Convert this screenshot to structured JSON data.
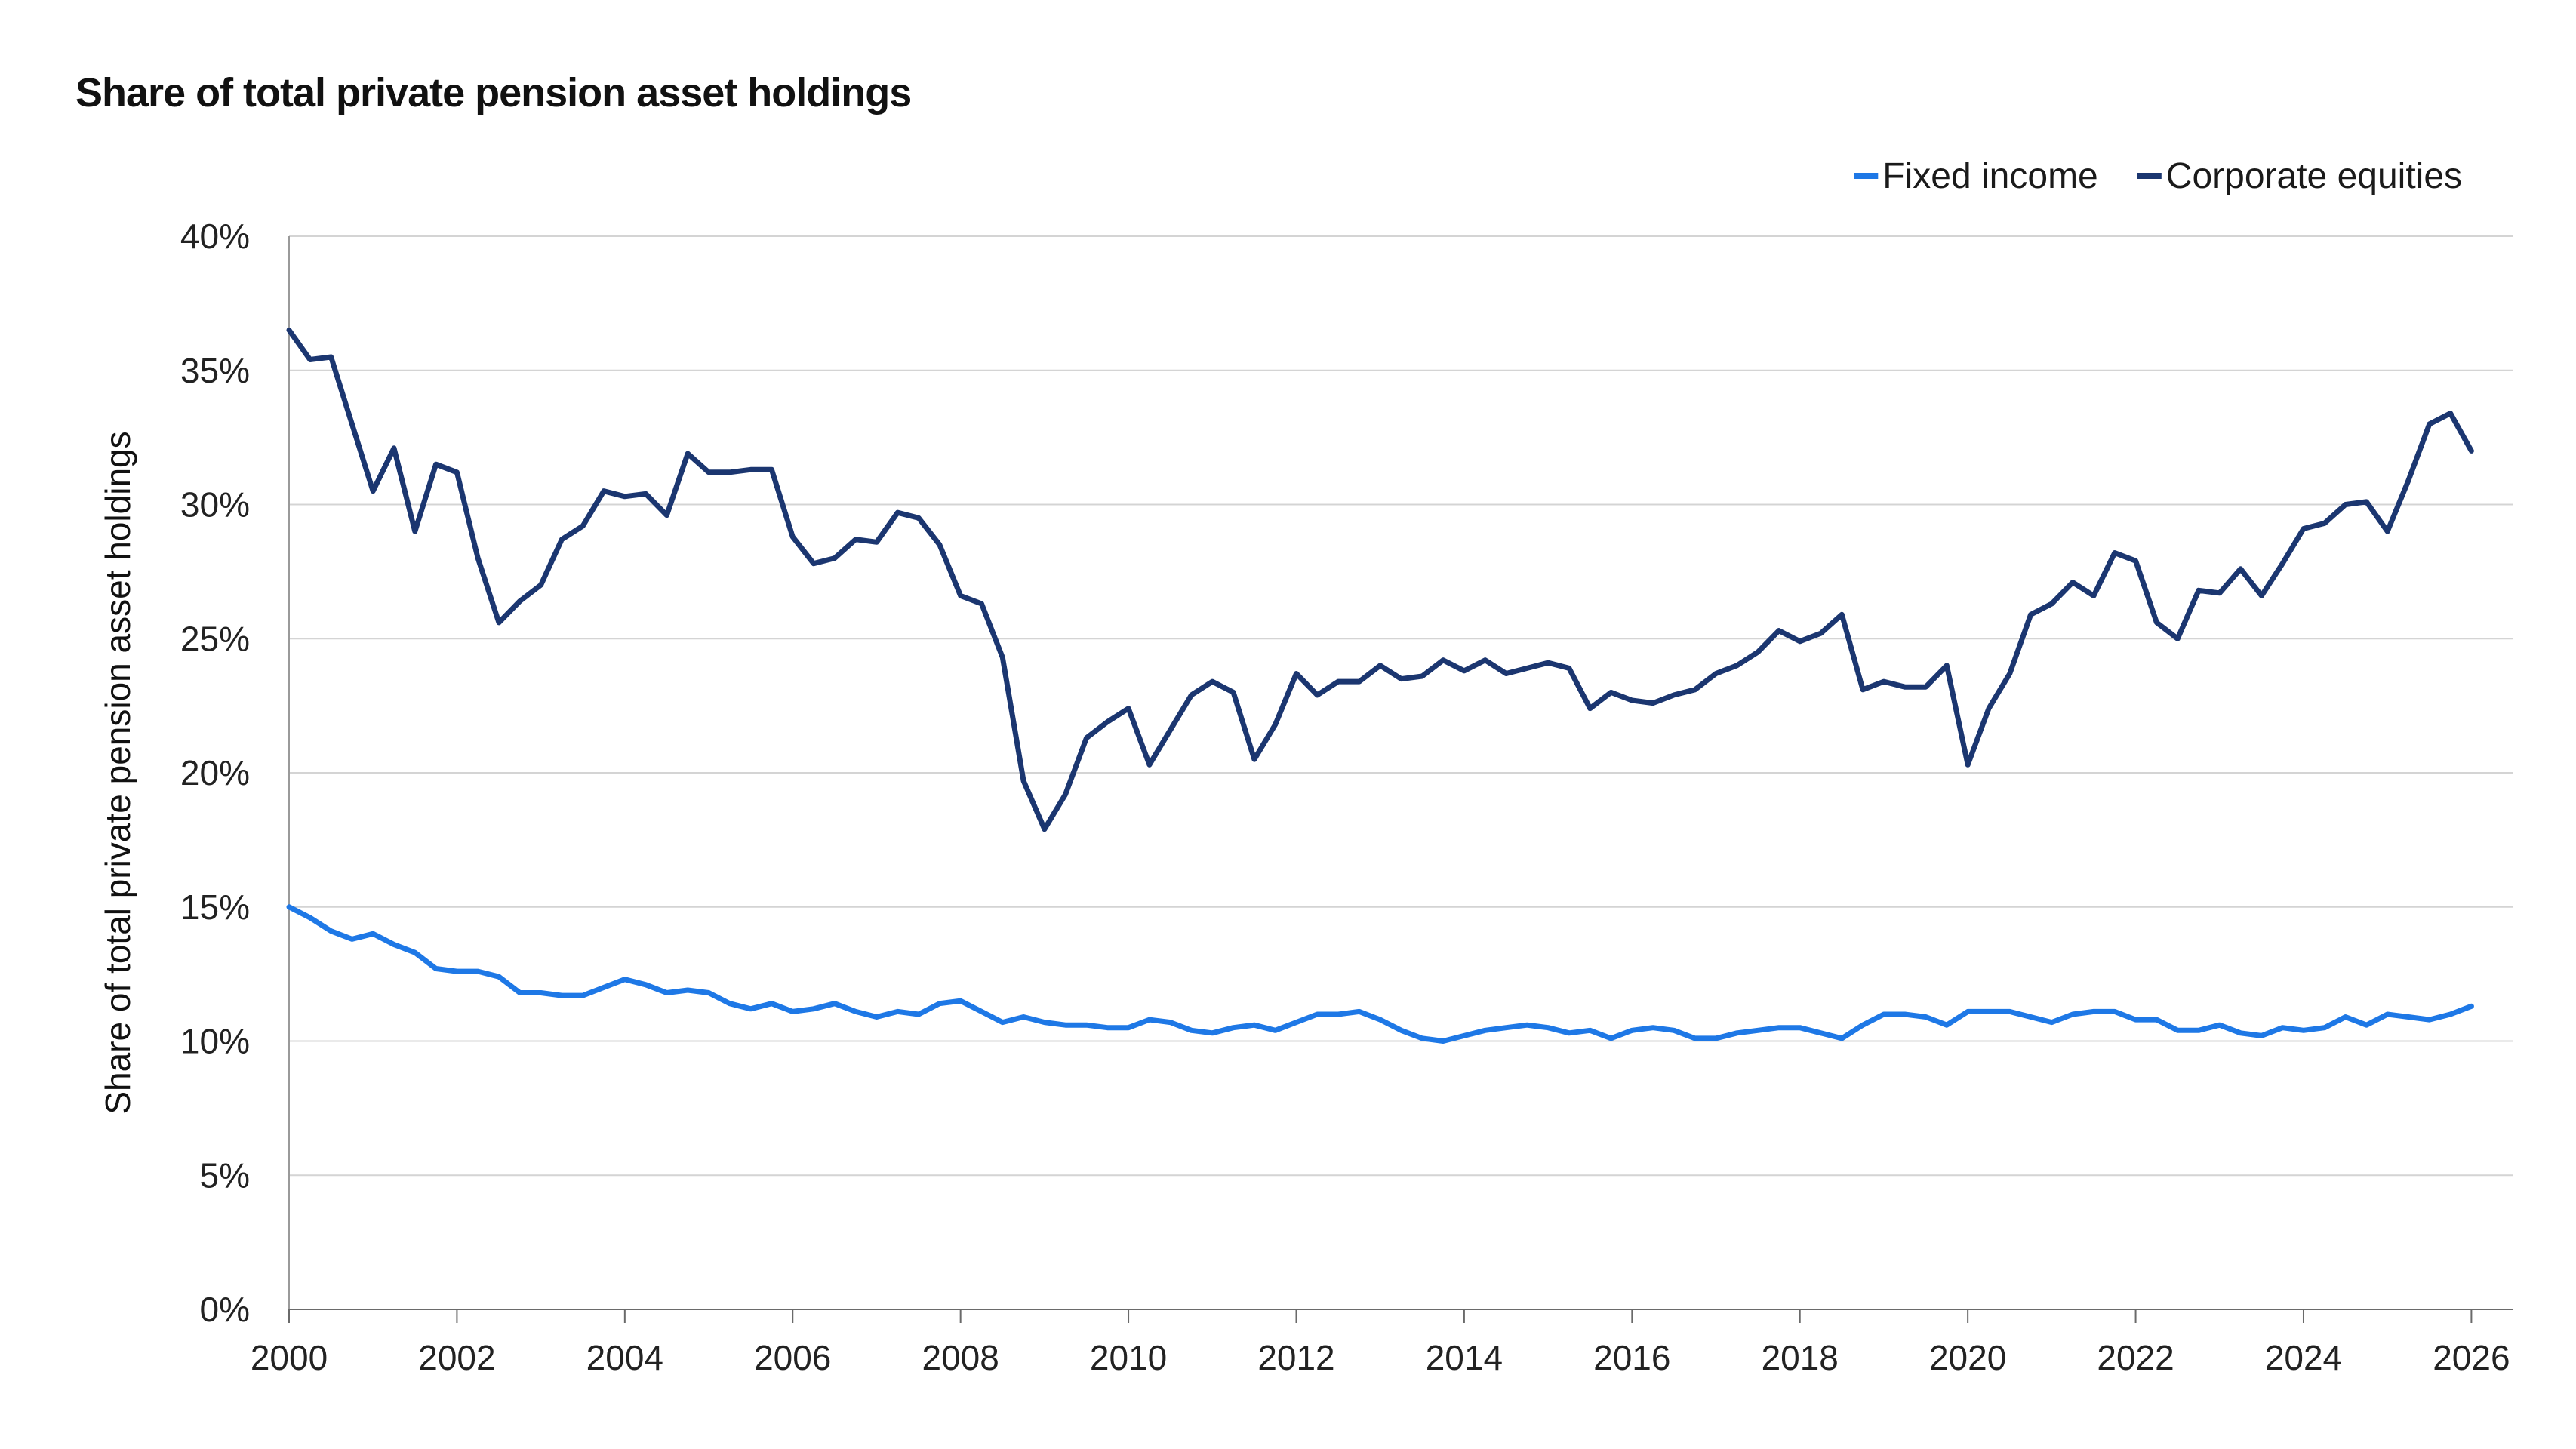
{
  "chart_data": {
    "type": "line",
    "title": "Share of total private pension asset holdings",
    "xlabel": "",
    "ylabel": "Share of total private pension asset holdings",
    "xlim": [
      2000,
      2026.5
    ],
    "ylim": [
      0,
      0.4
    ],
    "x_ticks": [
      "2000",
      "2002",
      "2004",
      "2006",
      "2008",
      "2010",
      "2012",
      "2014",
      "2016",
      "2018",
      "2020",
      "2022",
      "2024",
      "2026"
    ],
    "y_ticks": [
      "0%",
      "5%",
      "10%",
      "15%",
      "20%",
      "25%",
      "30%",
      "35%",
      "40%"
    ],
    "grid": "horizontal",
    "legend_position": "top-right",
    "x_start": 2000,
    "x_step": 0.25,
    "series": [
      {
        "name": "Fixed income",
        "color": "#1e78e6",
        "values": [
          0.15,
          0.146,
          0.141,
          0.138,
          0.14,
          0.136,
          0.133,
          0.127,
          0.126,
          0.126,
          0.124,
          0.118,
          0.118,
          0.117,
          0.117,
          0.12,
          0.123,
          0.121,
          0.118,
          0.119,
          0.118,
          0.114,
          0.112,
          0.114,
          0.111,
          0.112,
          0.114,
          0.111,
          0.109,
          0.111,
          0.11,
          0.114,
          0.115,
          0.111,
          0.107,
          0.109,
          0.107,
          0.106,
          0.106,
          0.105,
          0.105,
          0.108,
          0.107,
          0.104,
          0.103,
          0.105,
          0.106,
          0.104,
          0.107,
          0.11,
          0.11,
          0.111,
          0.108,
          0.104,
          0.101,
          0.1,
          0.102,
          0.104,
          0.105,
          0.106,
          0.105,
          0.103,
          0.104,
          0.101,
          0.104,
          0.105,
          0.104,
          0.101,
          0.101,
          0.103,
          0.104,
          0.105,
          0.105,
          0.103,
          0.101,
          0.106,
          0.11,
          0.11,
          0.109,
          0.106,
          0.111,
          0.111,
          0.111,
          0.109,
          0.107,
          0.11,
          0.111,
          0.111,
          0.108,
          0.108,
          0.104,
          0.104,
          0.106,
          0.103,
          0.102,
          0.105,
          0.104,
          0.105,
          0.109,
          0.106,
          0.11,
          0.109,
          0.108,
          0.11,
          0.113
        ]
      },
      {
        "name": "Corporate equities",
        "color": "#1b3670",
        "values": [
          0.365,
          0.354,
          0.355,
          0.33,
          0.305,
          0.321,
          0.29,
          0.315,
          0.312,
          0.28,
          0.256,
          0.264,
          0.27,
          0.287,
          0.292,
          0.305,
          0.303,
          0.304,
          0.296,
          0.319,
          0.312,
          0.312,
          0.313,
          0.313,
          0.288,
          0.278,
          0.28,
          0.287,
          0.286,
          0.297,
          0.295,
          0.285,
          0.266,
          0.263,
          0.243,
          0.197,
          0.179,
          0.192,
          0.213,
          0.219,
          0.224,
          0.203,
          0.216,
          0.229,
          0.234,
          0.23,
          0.205,
          0.218,
          0.237,
          0.229,
          0.234,
          0.234,
          0.24,
          0.235,
          0.236,
          0.242,
          0.238,
          0.242,
          0.237,
          0.239,
          0.241,
          0.239,
          0.224,
          0.23,
          0.227,
          0.226,
          0.229,
          0.231,
          0.237,
          0.24,
          0.245,
          0.253,
          0.249,
          0.252,
          0.259,
          0.231,
          0.234,
          0.232,
          0.232,
          0.24,
          0.203,
          0.224,
          0.237,
          0.259,
          0.263,
          0.271,
          0.266,
          0.282,
          0.279,
          0.256,
          0.25,
          0.268,
          0.267,
          0.276,
          0.266,
          0.278,
          0.291,
          0.293,
          0.3,
          0.301,
          0.29,
          0.309,
          0.33,
          0.334,
          0.32
        ]
      }
    ]
  }
}
